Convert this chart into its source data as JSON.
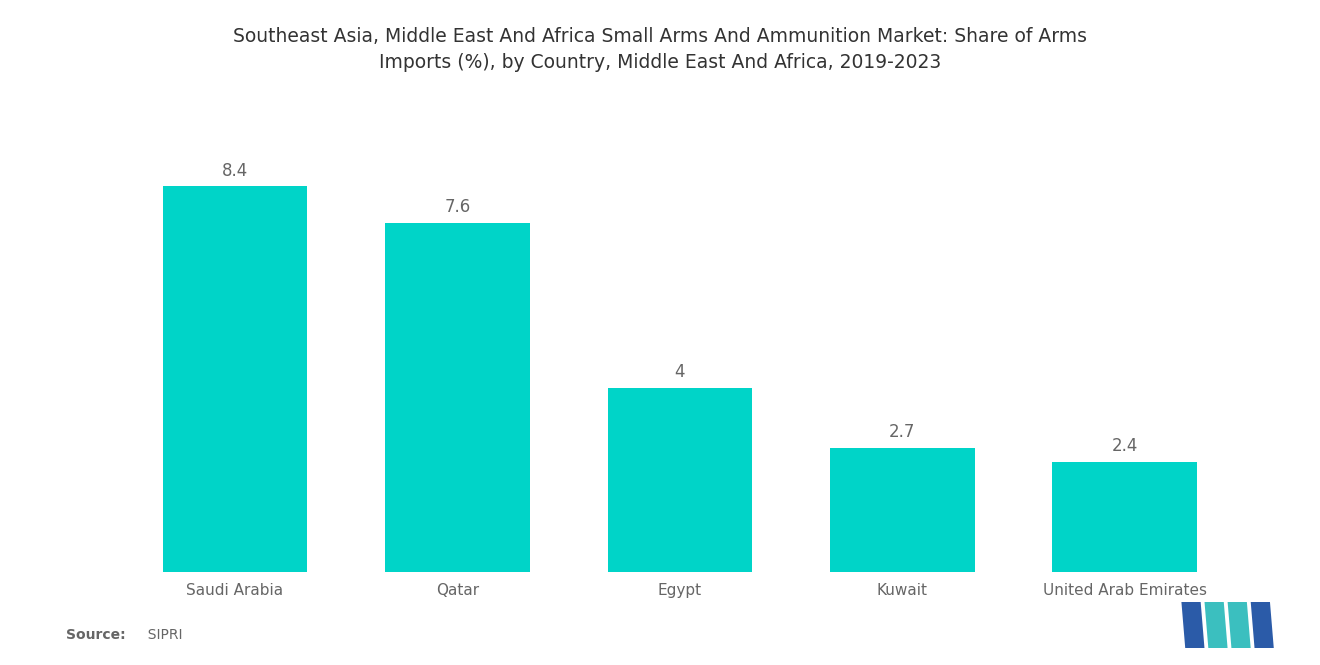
{
  "title_line1": "Southeast Asia, Middle East And Africa Small Arms And Ammunition Market: Share of Arms",
  "title_line2": "Imports (%), by Country, Middle East And Africa, 2019-2023",
  "categories": [
    "Saudi Arabia",
    "Qatar",
    "Egypt",
    "Kuwait",
    "United Arab Emirates"
  ],
  "values": [
    8.4,
    7.6,
    4.0,
    2.7,
    2.4
  ],
  "bar_color": "#00D4C8",
  "background_color": "#ffffff",
  "title_fontsize": 13.5,
  "label_fontsize": 11,
  "value_fontsize": 12,
  "source_bold": "Source:",
  "source_normal": "  SIPRI",
  "ylim": [
    0,
    10
  ],
  "bar_width": 0.65,
  "logo_blue": "#2B5BA8",
  "logo_teal": "#3BBFBF"
}
